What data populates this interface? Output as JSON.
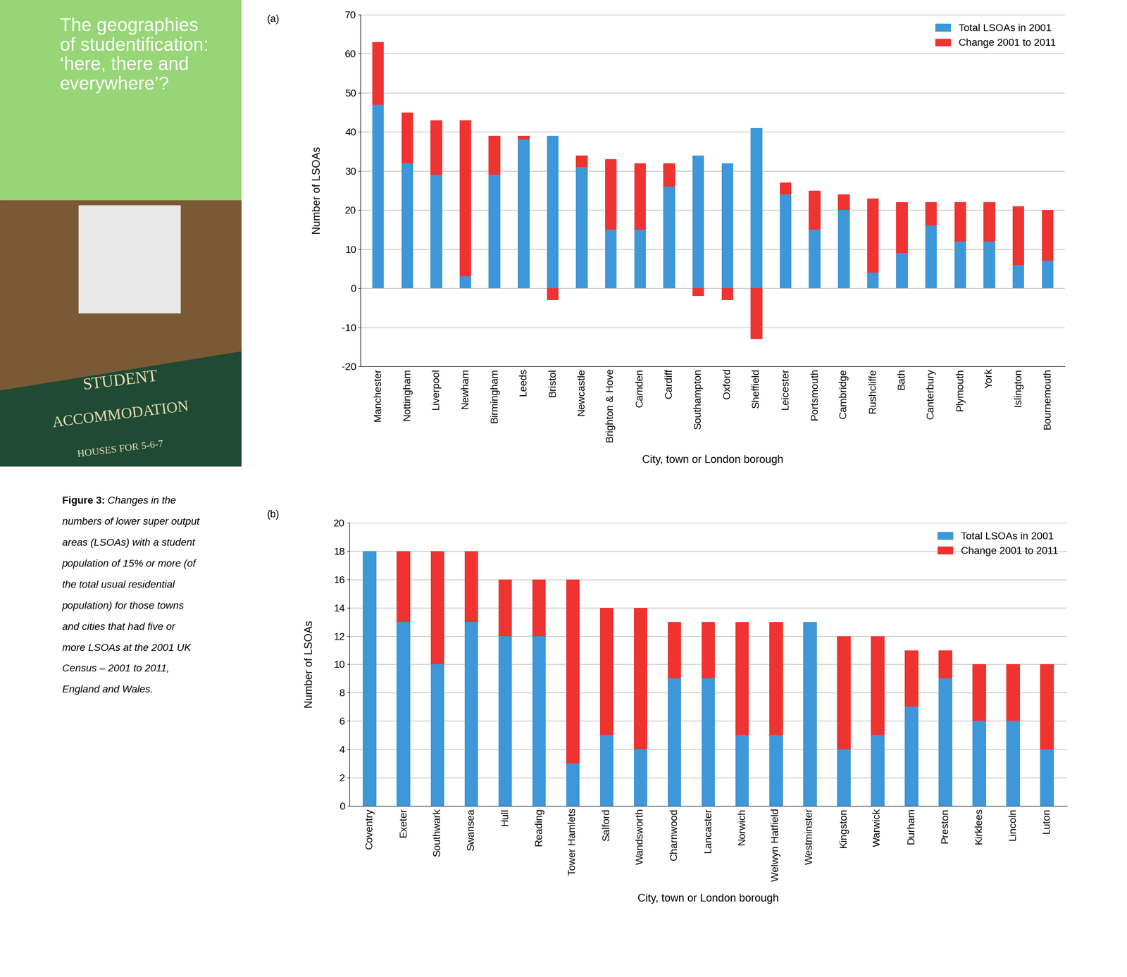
{
  "sidebar": {
    "title": "The geographies\nof studentification:\n‘here, there and\neverywhere’?",
    "sign": [
      "STUDENT",
      "ACCOMMODATION",
      "HOUSES FOR 5-6-7"
    ]
  },
  "caption": {
    "label": "Figure 3:",
    "text": "Changes in the numbers of lower super output areas (LSOAs) with a student population of 15% or more (of the total usual residential population) for those towns and cities that had five or more LSOAs at the 2001 UK Census – 2001 to 2011, England and Wales."
  },
  "chart_data": [
    {
      "type": "bar",
      "panel_label": "(a)",
      "stacked": true,
      "grid": true,
      "legend": "upper right",
      "x_label": "City, town or London borough",
      "y_label": "Number of LSOAs",
      "categories": [
        "Manchester",
        "Nottingham",
        "Liverpool",
        "Newham",
        "Birmingham",
        "Leeds",
        "Bristol",
        "Newcastle",
        "Brighton & Hove",
        "Camden",
        "Cardiff",
        "Southampton",
        "Oxford",
        "Sheffield",
        "Leicester",
        "Portsmouth",
        "Cambridge",
        "Rushcliffe",
        "Bath",
        "Canterbury",
        "Plymouth",
        "York",
        "Islington",
        "Bournemouth"
      ],
      "series": [
        {
          "name": "Total LSOAs in 2001",
          "color": "#3d97d8",
          "values": [
            47,
            32,
            29,
            3,
            29,
            38,
            39,
            31,
            15,
            15,
            26,
            34,
            32,
            41,
            24,
            15,
            20,
            4,
            9,
            16,
            12,
            12,
            6,
            7
          ]
        },
        {
          "name": "Change 2001 to 2011",
          "color": "#ef3330",
          "values": [
            16,
            13,
            14,
            40,
            10,
            1,
            -3,
            3,
            18,
            17,
            6,
            -2,
            -3,
            -13,
            3,
            10,
            4,
            19,
            13,
            6,
            10,
            10,
            15,
            13
          ]
        }
      ],
      "ylim": [
        -20,
        70
      ],
      "yticks": [
        -20,
        -10,
        0,
        10,
        20,
        30,
        40,
        50,
        60,
        70
      ]
    },
    {
      "type": "bar",
      "panel_label": "(b)",
      "stacked": true,
      "grid": true,
      "legend": "upper right",
      "x_label": "City, town or London borough",
      "y_label": "Number of LSOAs",
      "categories": [
        "Coventry",
        "Exeter",
        "Southwark",
        "Swansea",
        "Hull",
        "Reading",
        "Tower Hamlets",
        "Salford",
        "Wandsworth",
        "Charnwood",
        "Lancaster",
        "Norwich",
        "Welwyn Hatfield",
        "Westminster",
        "Kingston",
        "Warwick",
        "Durham",
        "Preston",
        "Kirklees",
        "Lincoln",
        "Luton"
      ],
      "series": [
        {
          "name": "Total LSOAs in 2001",
          "color": "#3d97d8",
          "values": [
            18,
            13,
            10,
            13,
            12,
            12,
            3,
            5,
            4,
            9,
            9,
            5,
            5,
            13,
            4,
            5,
            7,
            9,
            6,
            6,
            4
          ]
        },
        {
          "name": "Change 2001 to 2011",
          "color": "#ef3330",
          "values": [
            0,
            5,
            8,
            5,
            4,
            4,
            13,
            9,
            10,
            4,
            4,
            8,
            8,
            0,
            8,
            7,
            4,
            2,
            4,
            4,
            6
          ]
        }
      ],
      "ylim": [
        0,
        20
      ],
      "yticks": [
        0,
        2,
        4,
        6,
        8,
        10,
        12,
        14,
        16,
        18,
        20
      ]
    }
  ]
}
